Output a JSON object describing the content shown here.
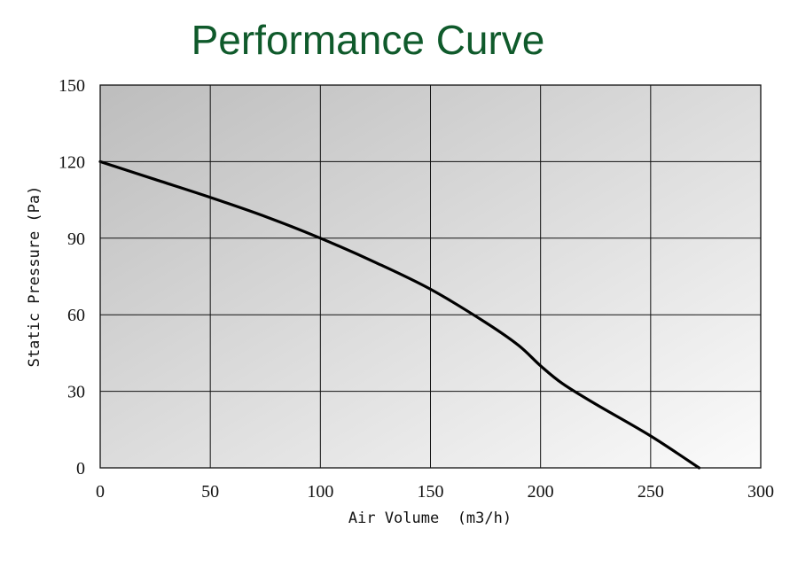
{
  "chart_data": {
    "type": "line",
    "title": "Performance Curve",
    "xlabel": "Air Volume  (m3/h)",
    "ylabel": "Static Pressure (Pa)",
    "xlim": [
      0,
      300
    ],
    "ylim": [
      0,
      150
    ],
    "x_ticks": [
      "0",
      "50",
      "100",
      "150",
      "200",
      "250",
      "300"
    ],
    "y_ticks": [
      "0",
      "30",
      "60",
      "90",
      "120",
      "150"
    ],
    "grid": true,
    "title_color": "#0f5a2b",
    "series": [
      {
        "x": [
          0,
          25,
          50,
          75,
          100,
          125,
          150,
          175,
          190,
          200,
          210,
          225,
          250,
          272
        ],
        "y": [
          120,
          113,
          106,
          98.5,
          90,
          80.5,
          70,
          57,
          48,
          40,
          33,
          25,
          12.5,
          0
        ]
      }
    ]
  }
}
